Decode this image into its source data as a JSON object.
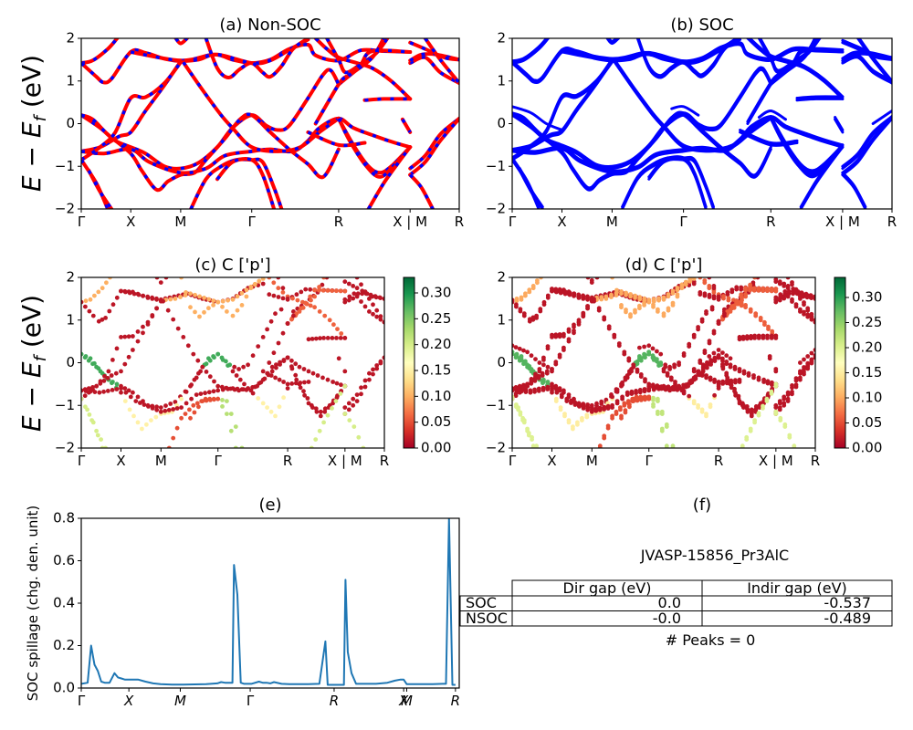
{
  "figure": {
    "ylabel_energy": "E − E_f (eV)",
    "ylabel_energy_main": "E − E",
    "ylabel_energy_sub": "f",
    "ylabel_energy_unit": " (eV)"
  },
  "panels": {
    "a": {
      "title": "(a) Non-SOC"
    },
    "b": {
      "title": "(b) SOC"
    },
    "c": {
      "title": "(c)  C ['p']"
    },
    "d": {
      "title": "(d) C ['p']"
    },
    "e": {
      "title": "(e)",
      "ylabel": "SOC spillage (chg. den. unit)"
    },
    "f": {
      "title": "(f)",
      "material": "JVASP-15856_Pr3AlC",
      "table": {
        "col_headers": [
          "Dir gap (eV)",
          "Indir gap (eV)"
        ],
        "rows": [
          {
            "label": "SOC",
            "values": [
              "0.0",
              "-0.537"
            ]
          },
          {
            "label": "NSOC",
            "values": [
              "-0.0",
              "-0.489"
            ]
          }
        ]
      },
      "peaks_text": "# Peaks = 0"
    }
  },
  "chart_data": [
    {
      "id": "a",
      "type": "line",
      "title": "(a) Non-SOC",
      "xlabel": "",
      "ylabel": "E − E_f (eV)",
      "ylim": [
        -2,
        2
      ],
      "yticks": [
        "2",
        "1",
        "0",
        "−1",
        "−2"
      ],
      "yticks_values": [
        2,
        1,
        0,
        -1,
        -2
      ],
      "xticks": [
        {
          "label": "Γ",
          "pos": 0.0
        },
        {
          "label": "X",
          "pos": 0.131
        },
        {
          "label": "M",
          "pos": 0.263
        },
        {
          "label": "Γ",
          "pos": 0.451
        },
        {
          "label": "R",
          "pos": 0.681
        },
        {
          "label": "X | M",
          "pos": 0.87
        },
        {
          "label": "R",
          "pos": 1.0
        }
      ],
      "style": "red line with blue dashes overlaid",
      "colors": {
        "line": "#ff0000",
        "dash": "#0000ff"
      },
      "note": "bands shown as continuous curves in k-path fractions (approximate)"
    },
    {
      "id": "b",
      "type": "line",
      "title": "(b) SOC",
      "ylim": [
        -2,
        2
      ],
      "yticks": [
        "2",
        "1",
        "0",
        "−1",
        "−2"
      ],
      "yticks_values": [
        2,
        1,
        0,
        -1,
        -2
      ],
      "xticks": [
        {
          "label": "Γ",
          "pos": 0.0
        },
        {
          "label": "X",
          "pos": 0.131
        },
        {
          "label": "M",
          "pos": 0.263
        },
        {
          "label": "Γ",
          "pos": 0.451
        },
        {
          "label": "R",
          "pos": 0.681
        },
        {
          "label": "X | M",
          "pos": 0.87
        },
        {
          "label": "R",
          "pos": 1.0
        }
      ],
      "colors": {
        "line": "#0000ff"
      }
    },
    {
      "id": "c",
      "type": "scatter",
      "title": "(c)  C ['p']",
      "ylim": [
        -2,
        2
      ],
      "yticks": [
        "2",
        "1",
        "0",
        "−1",
        "−2"
      ],
      "yticks_values": [
        2,
        1,
        0,
        -1,
        -2
      ],
      "xticks": [
        {
          "label": "Γ",
          "pos": 0.0
        },
        {
          "label": "X",
          "pos": 0.131
        },
        {
          "label": "M",
          "pos": 0.263
        },
        {
          "label": "Γ",
          "pos": 0.451
        },
        {
          "label": "R",
          "pos": 0.681
        },
        {
          "label": "X | M",
          "pos": 0.87
        },
        {
          "label": "R",
          "pos": 1.0
        }
      ],
      "colorbar": {
        "min": 0.0,
        "max": 0.33,
        "ticks": [
          "0.00",
          "0.05",
          "0.10",
          "0.15",
          "0.20",
          "0.25",
          "0.30"
        ],
        "tick_values": [
          0,
          0.05,
          0.1,
          0.15,
          0.2,
          0.25,
          0.3
        ],
        "cmap": "RdYlGn"
      }
    },
    {
      "id": "d",
      "type": "scatter",
      "title": "(d) C ['p']",
      "ylim": [
        -2,
        2
      ],
      "yticks": [
        "2",
        "1",
        "0",
        "−1",
        "−2"
      ],
      "yticks_values": [
        2,
        1,
        0,
        -1,
        -2
      ],
      "xticks": [
        {
          "label": "Γ",
          "pos": 0.0
        },
        {
          "label": "X",
          "pos": 0.131
        },
        {
          "label": "M",
          "pos": 0.263
        },
        {
          "label": "Γ",
          "pos": 0.451
        },
        {
          "label": "R",
          "pos": 0.681
        },
        {
          "label": "X | M",
          "pos": 0.87
        },
        {
          "label": "R",
          "pos": 1.0
        }
      ],
      "colorbar": {
        "min": 0.0,
        "max": 0.34,
        "ticks": [
          "0.00",
          "0.05",
          "0.10",
          "0.15",
          "0.20",
          "0.25",
          "0.30"
        ],
        "tick_values": [
          0,
          0.05,
          0.1,
          0.15,
          0.2,
          0.25,
          0.3
        ],
        "cmap": "RdYlGn"
      }
    },
    {
      "id": "e",
      "type": "line",
      "title": "(e)",
      "ylabel": "SOC spillage (chg. den. unit)",
      "ylim": [
        0,
        0.8
      ],
      "yticks": [
        "0.8",
        "0.6",
        "0.4",
        "0.2",
        "0.0"
      ],
      "yticks_values": [
        0.8,
        0.6,
        0.4,
        0.2,
        0.0
      ],
      "xticks": [
        {
          "label": "Γ",
          "pos": 0.0
        },
        {
          "label": "X",
          "pos": 0.126
        },
        {
          "label": "M",
          "pos": 0.262
        },
        {
          "label": "Γ",
          "pos": 0.447
        },
        {
          "label": "R",
          "pos": 0.669
        },
        {
          "label": "X",
          "pos": 0.853
        },
        {
          "label": "M",
          "pos": 0.861
        },
        {
          "label": "R",
          "pos": 0.99
        }
      ],
      "color": "#1f77b4",
      "x": [
        0.0,
        0.017,
        0.026,
        0.035,
        0.044,
        0.053,
        0.062,
        0.075,
        0.088,
        0.097,
        0.106,
        0.115,
        0.13,
        0.15,
        0.17,
        0.19,
        0.21,
        0.24,
        0.27,
        0.3,
        0.33,
        0.36,
        0.37,
        0.38,
        0.39,
        0.4,
        0.404,
        0.413,
        0.422,
        0.431,
        0.44,
        0.45,
        0.47,
        0.48,
        0.49,
        0.5,
        0.51,
        0.53,
        0.55,
        0.57,
        0.6,
        0.63,
        0.646,
        0.652,
        0.657,
        0.665,
        0.685,
        0.695,
        0.699,
        0.705,
        0.715,
        0.727,
        0.75,
        0.78,
        0.81,
        0.83,
        0.845,
        0.853,
        0.861,
        0.88,
        0.9,
        0.93,
        0.956,
        0.965,
        0.973,
        0.982,
        0.99
      ],
      "y": [
        0.02,
        0.025,
        0.2,
        0.11,
        0.08,
        0.03,
        0.025,
        0.025,
        0.07,
        0.05,
        0.045,
        0.04,
        0.04,
        0.04,
        0.03,
        0.022,
        0.018,
        0.016,
        0.016,
        0.017,
        0.018,
        0.022,
        0.028,
        0.025,
        0.025,
        0.025,
        0.58,
        0.44,
        0.025,
        0.02,
        0.02,
        0.02,
        0.03,
        0.025,
        0.025,
        0.022,
        0.028,
        0.02,
        0.018,
        0.018,
        0.018,
        0.02,
        0.22,
        0.015,
        0.015,
        0.015,
        0.015,
        0.015,
        0.51,
        0.17,
        0.07,
        0.02,
        0.02,
        0.02,
        0.025,
        0.035,
        0.04,
        0.04,
        0.018,
        0.018,
        0.018,
        0.018,
        0.02,
        0.02,
        0.8,
        0.015,
        0.015
      ]
    }
  ]
}
